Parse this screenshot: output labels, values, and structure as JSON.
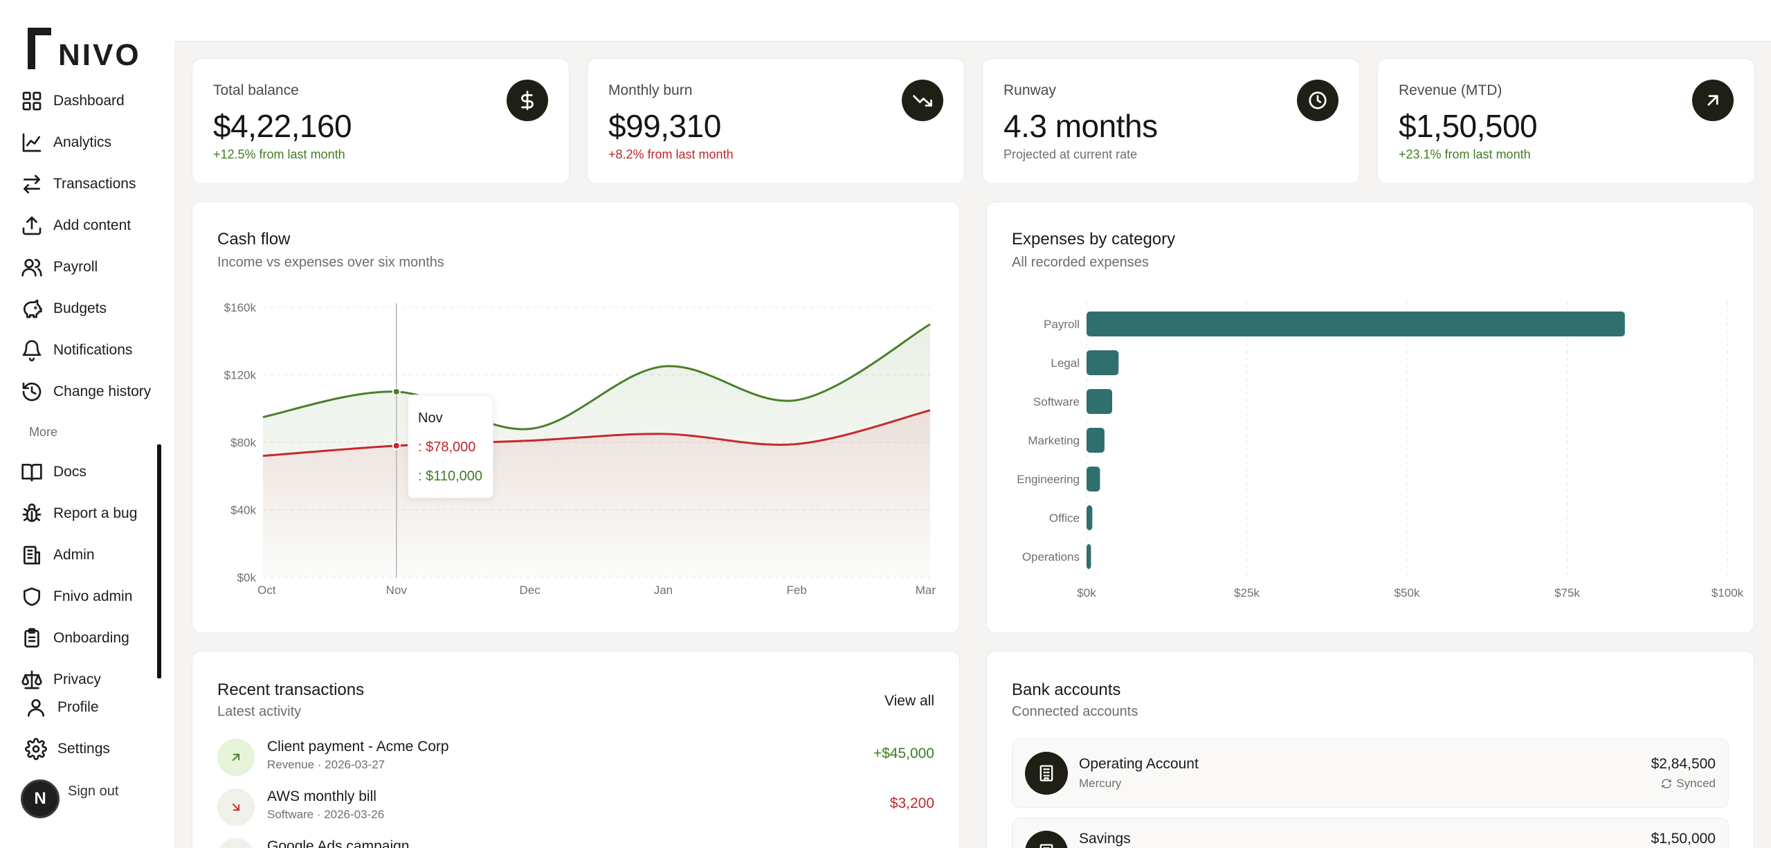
{
  "brand": {
    "name": "NIVO"
  },
  "sidebar": {
    "items": [
      {
        "label": "Dashboard",
        "icon": "dashboard-icon"
      },
      {
        "label": "Analytics",
        "icon": "line-chart-icon"
      },
      {
        "label": "Transactions",
        "icon": "arrows-swap-icon"
      },
      {
        "label": "Add content",
        "icon": "upload-icon"
      },
      {
        "label": "Payroll",
        "icon": "users-icon"
      },
      {
        "label": "Budgets",
        "icon": "piggy-bank-icon"
      },
      {
        "label": "Notifications",
        "icon": "bell-icon"
      },
      {
        "label": "Change history",
        "icon": "history-icon"
      }
    ],
    "more_label": "More",
    "more_items": [
      {
        "label": "Docs",
        "icon": "book-icon"
      },
      {
        "label": "Report a bug",
        "icon": "bug-icon"
      },
      {
        "label": "Admin",
        "icon": "building-icon"
      },
      {
        "label": "Fnivo admin",
        "icon": "shield-icon"
      },
      {
        "label": "Onboarding",
        "icon": "clipboard-icon"
      },
      {
        "label": "Privacy",
        "icon": "scale-icon"
      }
    ],
    "profile_label": "Profile",
    "settings_label": "Settings",
    "signout_label": "Sign out",
    "avatar_initial": "N"
  },
  "stats": [
    {
      "label": "Total balance",
      "value": "$4,22,160",
      "sub": "+12.5% from last month",
      "tone": "pos",
      "icon": "dollar-icon"
    },
    {
      "label": "Monthly burn",
      "value": "$99,310",
      "sub": "+8.2% from last month",
      "tone": "neg",
      "icon": "trending-down-icon"
    },
    {
      "label": "Runway",
      "value": "4.3 months",
      "sub": "Projected at current rate",
      "tone": "muted",
      "icon": "clock-icon"
    },
    {
      "label": "Revenue (MTD)",
      "value": "$1,50,500",
      "sub": "+23.1% from last month",
      "tone": "pos",
      "icon": "arrow-up-right-icon"
    }
  ],
  "cashflow": {
    "title": "Cash flow",
    "subtitle": "Income vs expenses over six months",
    "tooltip": {
      "title": "Nov",
      "expenses": ": $78,000",
      "income": ": $110,000"
    }
  },
  "expenses": {
    "title": "Expenses by category",
    "subtitle": "All recorded expenses"
  },
  "transactions": {
    "title": "Recent transactions",
    "subtitle": "Latest activity",
    "view_all": "View all",
    "items": [
      {
        "name": "Client payment - Acme Corp",
        "meta": "Revenue · 2026-03-27",
        "amount": "+$45,000",
        "direction": "in"
      },
      {
        "name": "AWS monthly bill",
        "meta": "Software · 2026-03-26",
        "amount": "$3,200",
        "direction": "out"
      },
      {
        "name": "Google Ads campaign",
        "meta": "",
        "amount": "",
        "direction": "out"
      }
    ]
  },
  "bank_accounts": {
    "title": "Bank accounts",
    "subtitle": "Connected accounts",
    "items": [
      {
        "name": "Operating Account",
        "bank": "Mercury",
        "balance": "$2,84,500",
        "status": "Synced"
      },
      {
        "name": "Savings",
        "bank": "",
        "balance": "$1,50,000",
        "status": ""
      }
    ]
  },
  "colors": {
    "income": "#4a7f2a",
    "expenses": "#c7282d",
    "bar": "#2f6f6e",
    "accent_dark": "#1f1f16"
  },
  "chart_data": [
    {
      "type": "area",
      "title": "Cash flow",
      "subtitle": "Income vs expenses over six months",
      "categories": [
        "Oct",
        "Nov",
        "Dec",
        "Jan",
        "Feb",
        "Mar"
      ],
      "series": [
        {
          "values": [
            95000,
            110000,
            88000,
            125000,
            105000,
            150000
          ]
        },
        {
          "values": [
            72000,
            78000,
            81000,
            85000,
            79000,
            99000
          ]
        }
      ],
      "ylim": [
        0,
        160000
      ],
      "yticks": [
        "$0k",
        "$40k",
        "$80k",
        "$120k",
        "$160k"
      ],
      "ytick_values": [
        0,
        40000,
        80000,
        120000,
        160000
      ],
      "grid": true
    },
    {
      "type": "bar",
      "orientation": "horizontal",
      "title": "Expenses by category",
      "subtitle": "All recorded expenses",
      "categories": [
        "Payroll",
        "Legal",
        "Software",
        "Marketing",
        "Engineering",
        "Office",
        "Operations"
      ],
      "values": [
        84000,
        5000,
        4000,
        2800,
        2100,
        900,
        700
      ],
      "xlim": [
        0,
        100000
      ],
      "xticks": [
        "$0k",
        "$25k",
        "$50k",
        "$75k",
        "$100k"
      ],
      "xtick_values": [
        0,
        25000,
        50000,
        75000,
        100000
      ],
      "grid": true
    }
  ]
}
